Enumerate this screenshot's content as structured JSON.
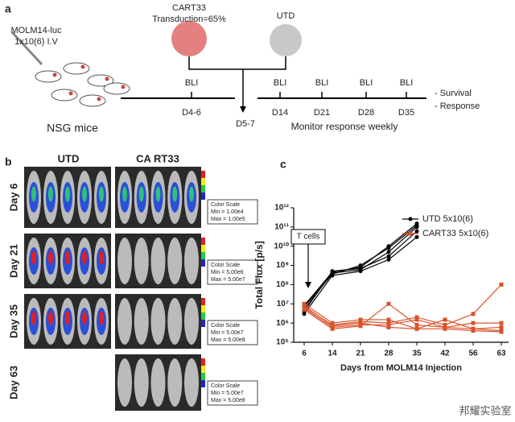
{
  "panel_a": {
    "label": "a",
    "inject": [
      "MOLM14-luc",
      "1x10(6) I.V"
    ],
    "mice": "NSG mice",
    "cart": [
      "CART33",
      "Transduction=65%"
    ],
    "utd": "UTD",
    "bli": [
      "BLI",
      "BLI",
      "BLI",
      "BLI",
      "BLI"
    ],
    "days": [
      "D4-6",
      "D5-7",
      "D14",
      "D21",
      "D28",
      "D35"
    ],
    "outcomes": [
      "- Survival",
      "- Response"
    ],
    "monitor": "Monitor response weekly"
  },
  "panel_b": {
    "label": "b",
    "columns": [
      "UTD",
      "CA RT33"
    ],
    "rows": [
      "Day 6",
      "Day 21",
      "Day 35",
      "Day 63"
    ],
    "scales": [
      {
        "title": "Color Scale",
        "min": "Min = 1.00e4",
        "max": "Max = 1.00e5"
      },
      {
        "title": "Color Scale",
        "min": "Min = 5.00e6",
        "max": "Max = 5.00e7"
      },
      {
        "title": "Color Scale",
        "min": "Min = 5.00e7",
        "max": "Max = 5.00e8"
      },
      {
        "title": "Color Scale",
        "min": "Min = 5.00e7",
        "max": "Max = 5.00e8"
      }
    ]
  },
  "chart_data": {
    "type": "line",
    "panel": "c",
    "ylabel": "Total Flux [p/s]",
    "xlabel": "Days from MOLM14 Injection",
    "annotation": "T cells",
    "log_y": true,
    "categories": [
      "6",
      "14",
      "21",
      "28",
      "35",
      "42",
      "56",
      "63"
    ],
    "ylim": [
      100000,
      1000000000000
    ],
    "yticks": [
      {
        "value": 100000,
        "label": "10⁵"
      },
      {
        "value": 1000000,
        "label": "10⁶"
      },
      {
        "value": 10000000,
        "label": "10⁷"
      },
      {
        "value": 100000000,
        "label": "10⁸"
      },
      {
        "value": 1000000000,
        "label": "10⁹"
      },
      {
        "value": 10000000000,
        "label": "10¹⁰"
      },
      {
        "value": 100000000000,
        "label": "10¹¹"
      },
      {
        "value": 1000000000000,
        "label": "10¹²"
      }
    ],
    "series": [
      {
        "name": "UTD 5x10(6)",
        "color": "#000000",
        "marker": "circle",
        "lines": [
          [
            3000000,
            300000000,
            500000000,
            2000000000,
            30000000000,
            null,
            null,
            null
          ],
          [
            5000000,
            400000000,
            600000000,
            5000000000,
            100000000000,
            null,
            null,
            null
          ],
          [
            7000000,
            350000000,
            1000000000,
            8000000000,
            120000000000,
            null,
            null,
            null
          ],
          [
            4000000,
            500000000,
            700000000,
            3000000000,
            60000000000,
            null,
            null,
            null
          ],
          [
            8000000,
            450000000,
            800000000,
            10000000000,
            150000000000,
            null,
            null,
            null
          ]
        ]
      },
      {
        "name": "CART33 5x10(6)",
        "color": "#d9532c",
        "marker": "square",
        "lines": [
          [
            5000000,
            500000,
            700000,
            10000000,
            800000,
            600000,
            500000,
            400000
          ],
          [
            10000000,
            1000000,
            1500000,
            1500000,
            500000,
            500000,
            400000,
            350000
          ],
          [
            8000000,
            700000,
            1000000,
            600000,
            500000,
            1500000,
            500000,
            600000
          ],
          [
            6000000,
            600000,
            800000,
            800000,
            1500000,
            600000,
            1000000,
            1000000
          ],
          [
            7000000,
            800000,
            1200000,
            1000000,
            2000000,
            800000,
            3000000,
            100000000
          ]
        ]
      }
    ]
  },
  "watermark": "邦耀实验室"
}
